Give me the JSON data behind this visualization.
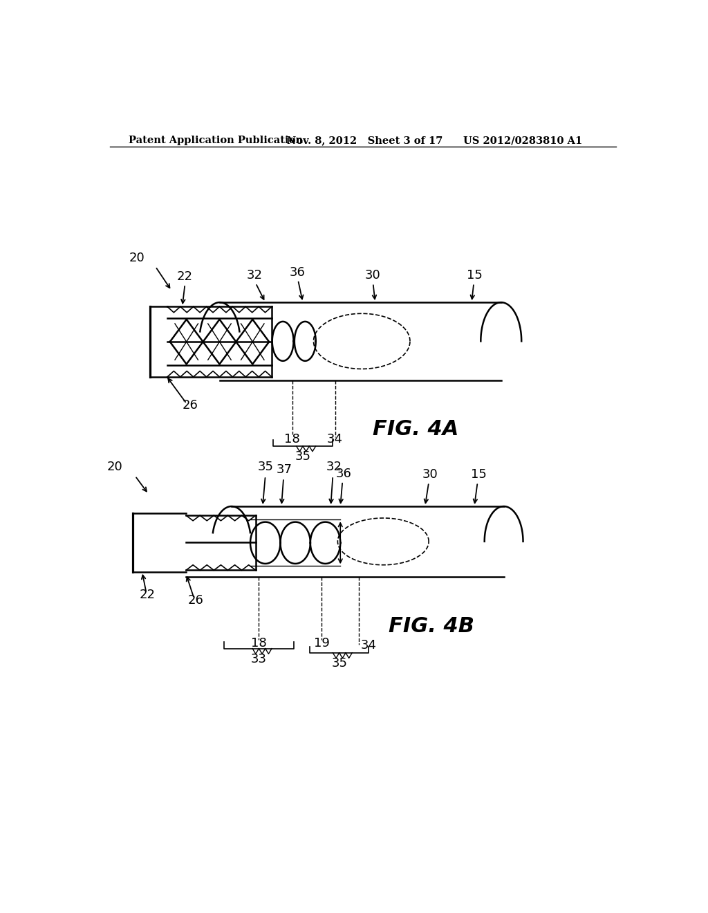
{
  "background_color": "#ffffff",
  "header_left": "Patent Application Publication",
  "header_mid": "Nov. 8, 2012   Sheet 3 of 17",
  "header_right": "US 2012/0283810 A1",
  "fig4a_label": "FIG. 4A",
  "fig4b_label": "FIG. 4B",
  "line_color": "#000000",
  "line_width": 1.8,
  "label_fontsize": 13,
  "header_fontsize": 10.5,
  "fig_label_fontsize": 22
}
